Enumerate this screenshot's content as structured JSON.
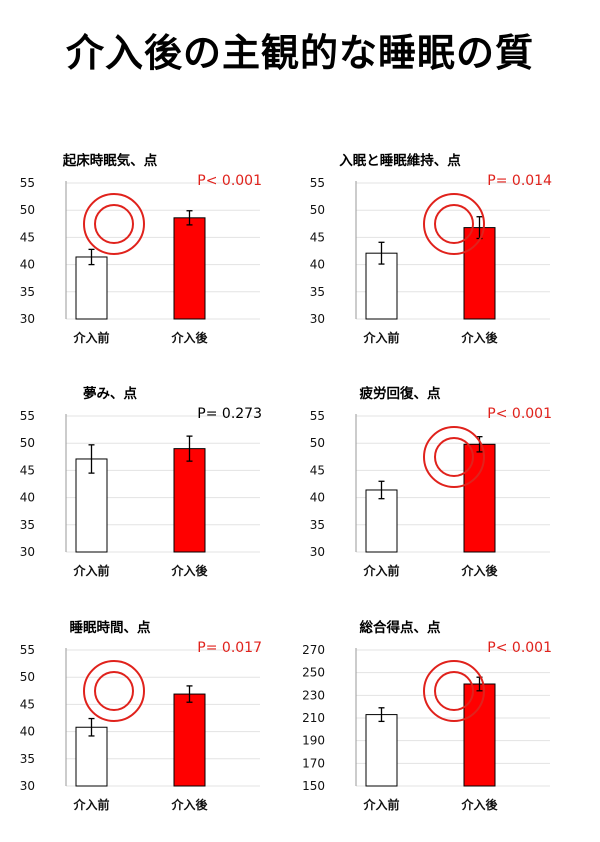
{
  "title": "介入後の主観的な睡眠の質",
  "colors": {
    "before": "#ffffff",
    "after": "#ff0000",
    "significant": "#e0221c",
    "non_significant": "#000000",
    "circle": "#e0221c"
  },
  "chart_data": [
    {
      "type": "bar",
      "title": "起床時眠気、点",
      "categories": [
        "介入前",
        "介入後"
      ],
      "values": [
        41.4,
        48.6
      ],
      "errors": [
        1.4,
        1.3
      ],
      "ylim": [
        30,
        55
      ],
      "yticks": [
        30,
        35,
        40,
        45,
        50,
        55
      ],
      "p_value": "P< 0.001",
      "significant": true,
      "mark": "double-circle",
      "grid": true
    },
    {
      "type": "bar",
      "title": "入眠と睡眠維持、点",
      "categories": [
        "介入前",
        "介入後"
      ],
      "values": [
        42.1,
        46.8
      ],
      "errors": [
        2.0,
        2.0
      ],
      "ylim": [
        30,
        55
      ],
      "yticks": [
        30,
        35,
        40,
        45,
        50,
        55
      ],
      "p_value": "P= 0.014",
      "significant": true,
      "mark": "double-circle",
      "grid": true
    },
    {
      "type": "bar",
      "title": "夢み、点",
      "categories": [
        "介入前",
        "介入後"
      ],
      "values": [
        47.1,
        49.0
      ],
      "errors": [
        2.6,
        2.3
      ],
      "ylim": [
        30,
        55
      ],
      "yticks": [
        30,
        35,
        40,
        45,
        50,
        55
      ],
      "p_value": "P= 0.273",
      "significant": false,
      "mark": "",
      "grid": true
    },
    {
      "type": "bar",
      "title": "疲労回復、点",
      "categories": [
        "介入前",
        "介入後"
      ],
      "values": [
        41.4,
        49.8
      ],
      "errors": [
        1.6,
        1.4
      ],
      "ylim": [
        30,
        55
      ],
      "yticks": [
        30,
        35,
        40,
        45,
        50,
        55
      ],
      "p_value": "P< 0.001",
      "significant": true,
      "mark": "double-circle",
      "grid": true
    },
    {
      "type": "bar",
      "title": "睡眠時間、点",
      "categories": [
        "介入前",
        "介入後"
      ],
      "values": [
        40.8,
        46.9
      ],
      "errors": [
        1.6,
        1.5
      ],
      "ylim": [
        30,
        55
      ],
      "yticks": [
        30,
        35,
        40,
        45,
        50,
        55
      ],
      "p_value": "P= 0.017",
      "significant": true,
      "mark": "double-circle",
      "grid": true
    },
    {
      "type": "bar",
      "title": "総合得点、点",
      "categories": [
        "介入前",
        "介入後"
      ],
      "values": [
        213,
        240
      ],
      "errors": [
        6,
        6
      ],
      "ylim": [
        150,
        270
      ],
      "yticks": [
        150,
        170,
        190,
        210,
        230,
        250,
        270
      ],
      "p_value": "P< 0.001",
      "significant": true,
      "mark": "double-circle",
      "grid": true
    }
  ]
}
